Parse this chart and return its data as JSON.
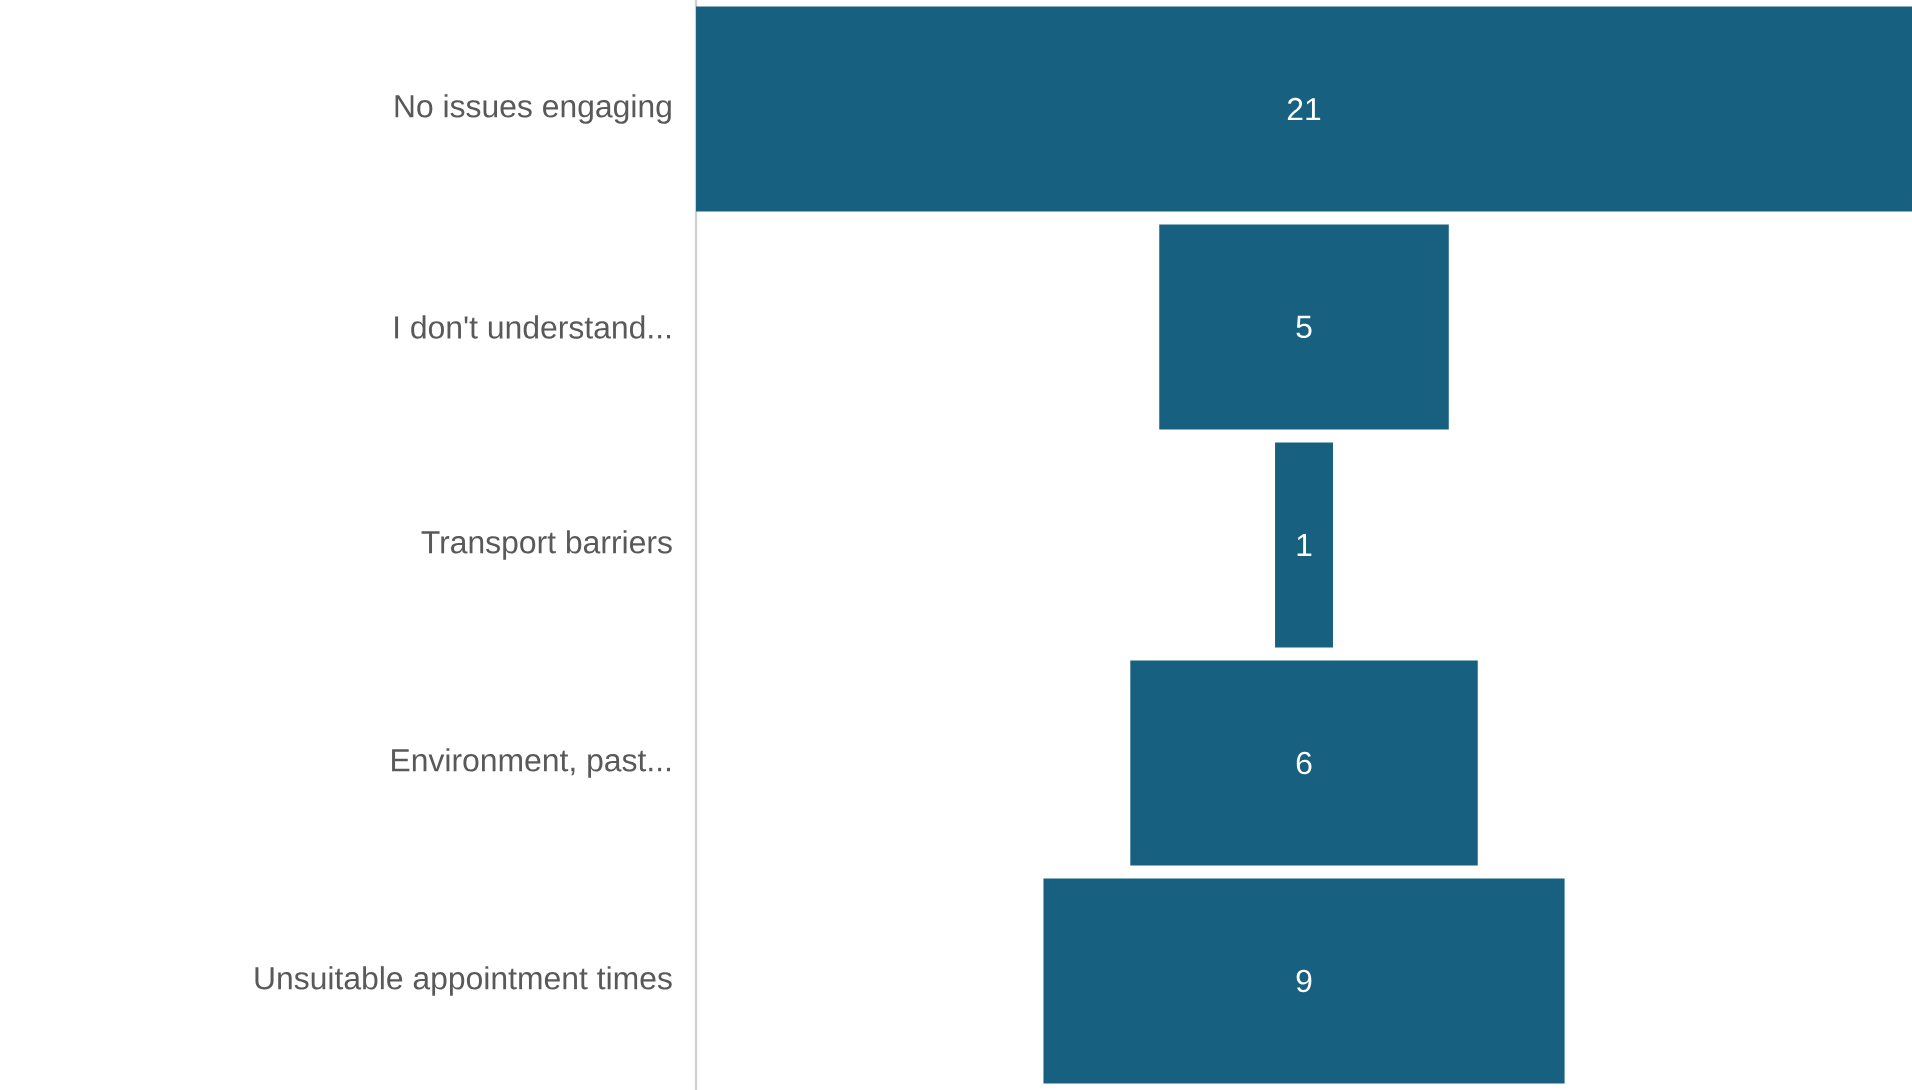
{
  "chart_data": {
    "type": "other",
    "categories": [
      "No issues engaging",
      "I don't understand...",
      "Transport barriers",
      "Environment, past...",
      "Unsuitable appointment times"
    ],
    "values": [
      21,
      5,
      1,
      6,
      9
    ],
    "color": "#17607f",
    "data_labels": true
  }
}
